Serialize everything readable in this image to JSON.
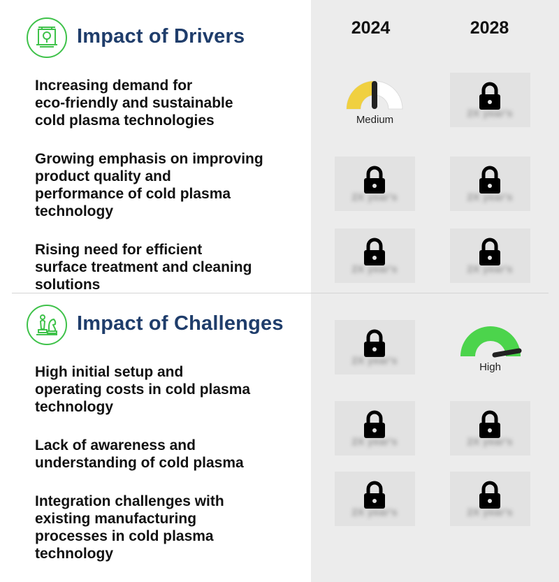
{
  "years": [
    "2024",
    "2028"
  ],
  "locked_placeholder": "2X year's",
  "drivers": {
    "title": "Impact of Drivers",
    "icon": "machine-gear-icon",
    "items": [
      {
        "text": "Increasing demand for\neco-friendly and sustainable\ncold plasma technologies",
        "impact_2024": {
          "label": "Medium",
          "level": 0.5,
          "color": "#f0d040"
        },
        "impact_2028": "locked"
      },
      {
        "text": "Growing emphasis on improving\nproduct quality and\nperformance of cold plasma\ntechnology",
        "impact_2024": "locked",
        "impact_2028": "locked"
      },
      {
        "text": "Rising need for efficient\nsurface treatment and cleaning\nsolutions",
        "impact_2024": "locked",
        "impact_2028": "locked"
      }
    ]
  },
  "challenges": {
    "title": "Impact of Challenges",
    "icon": "chess-pieces-icon",
    "items": [
      {
        "text": "High initial setup and\noperating costs in cold plasma\ntechnology",
        "impact_2024": "locked",
        "impact_2028": {
          "label": "High",
          "level": 0.85,
          "color": "#4cd44c"
        }
      },
      {
        "text": "Lack of awareness and\nunderstanding of cold plasma",
        "impact_2024": "locked",
        "impact_2028": "locked"
      },
      {
        "text": "Integration challenges with\nexisting manufacturing\nprocesses in cold plasma\ntechnology",
        "impact_2024": "locked",
        "impact_2028": "locked"
      }
    ]
  },
  "colors": {
    "accent_green": "#3fc24a",
    "title_blue": "#1f3d6b",
    "panel_gray": "#ececec"
  }
}
